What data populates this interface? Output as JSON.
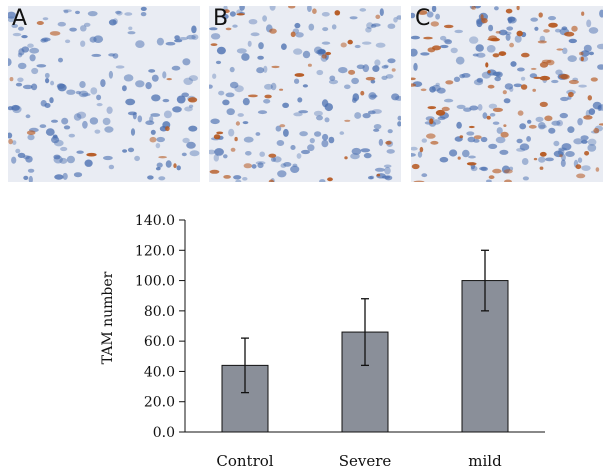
{
  "panels": [
    {
      "label": "A",
      "stain": "light"
    },
    {
      "label": "B",
      "stain": "medium"
    },
    {
      "label": "C",
      "stain": "heavy"
    }
  ],
  "colors": {
    "bar": "#8a8f99",
    "cell": "#4a6fb0",
    "stain": "#b5561d",
    "tissue": "#e9ecf3"
  },
  "chart_data": {
    "type": "bar",
    "categories": [
      "Control",
      "Severe",
      "mild"
    ],
    "values": [
      44,
      66,
      100
    ],
    "errors": [
      18,
      22,
      20
    ],
    "ylabel": "TAM number",
    "ylim": [
      0,
      140
    ],
    "yticks": [
      "0.0",
      "20.0",
      "40.0",
      "60.0",
      "80.0",
      "100.0",
      "120.0",
      "140.0"
    ]
  }
}
